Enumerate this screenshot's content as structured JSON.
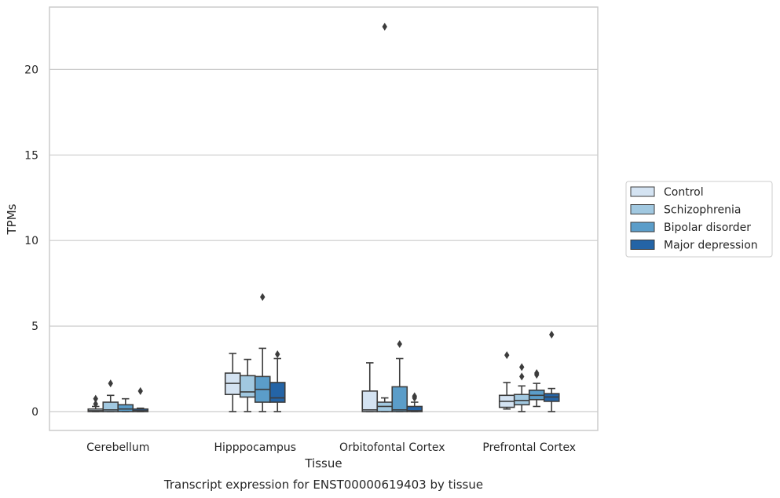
{
  "chart_data": {
    "type": "boxplot",
    "title": "Transcript expression for ENST00000619403 by tissue",
    "xlabel": "Tissue",
    "ylabel": "TPMs",
    "ylim": [
      -1.1,
      23.5
    ],
    "yticks": [
      0,
      5,
      10,
      15,
      20
    ],
    "grid": "horizontal",
    "legend_position": "right",
    "categories": [
      "Cerebellum",
      "Hipppocampus",
      "Orbitofontal Cortex",
      "Prefrontal Cortex"
    ],
    "series": [
      {
        "name": "Control",
        "color": "#d4e3f2",
        "boxes": [
          {
            "whislo": 0,
            "q1": 0.0,
            "med": 0.05,
            "q3": 0.15,
            "whishi": 0.3,
            "fliers": [
              0.45,
              0.75
            ]
          },
          {
            "whislo": 0,
            "q1": 1.0,
            "med": 1.65,
            "q3": 2.25,
            "whishi": 3.4,
            "fliers": []
          },
          {
            "whislo": 0,
            "q1": 0.0,
            "med": 0.1,
            "q3": 1.2,
            "whishi": 2.85,
            "fliers": []
          },
          {
            "whislo": 0.15,
            "q1": 0.25,
            "med": 0.6,
            "q3": 0.95,
            "whishi": 1.7,
            "fliers": [
              3.3
            ]
          }
        ]
      },
      {
        "name": "Schizophrenia",
        "color": "#a1c8e0",
        "boxes": [
          {
            "whislo": 0,
            "q1": 0.0,
            "med": 0.1,
            "q3": 0.55,
            "whishi": 0.95,
            "fliers": [
              1.65
            ]
          },
          {
            "whislo": 0,
            "q1": 0.85,
            "med": 1.15,
            "q3": 2.1,
            "whishi": 3.05,
            "fliers": []
          },
          {
            "whislo": 0,
            "q1": 0.0,
            "med": 0.3,
            "q3": 0.55,
            "whishi": 0.8,
            "fliers": [
              22.5
            ]
          },
          {
            "whislo": 0,
            "q1": 0.4,
            "med": 0.65,
            "q3": 1.0,
            "whishi": 1.5,
            "fliers": [
              2.05,
              2.6
            ]
          }
        ]
      },
      {
        "name": "Bipolar disorder",
        "color": "#5b9dc9",
        "boxes": [
          {
            "whislo": 0,
            "q1": 0.0,
            "med": 0.15,
            "q3": 0.4,
            "whishi": 0.75,
            "fliers": []
          },
          {
            "whislo": 0,
            "q1": 0.55,
            "med": 1.3,
            "q3": 2.05,
            "whishi": 3.7,
            "fliers": [
              6.7
            ]
          },
          {
            "whislo": 0,
            "q1": 0.0,
            "med": 0.1,
            "q3": 1.45,
            "whishi": 3.1,
            "fliers": [
              3.95
            ]
          },
          {
            "whislo": 0.3,
            "q1": 0.7,
            "med": 0.95,
            "q3": 1.25,
            "whishi": 1.65,
            "fliers": [
              2.15,
              2.25
            ]
          }
        ]
      },
      {
        "name": "Major depression",
        "color": "#2464a6",
        "boxes": [
          {
            "whislo": 0,
            "q1": 0.0,
            "med": 0.05,
            "q3": 0.15,
            "whishi": 0.2,
            "fliers": [
              1.2
            ]
          },
          {
            "whislo": 0,
            "q1": 0.55,
            "med": 0.8,
            "q3": 1.7,
            "whishi": 3.1,
            "fliers": [
              3.35
            ]
          },
          {
            "whislo": 0,
            "q1": 0.0,
            "med": 0.05,
            "q3": 0.3,
            "whishi": 0.55,
            "fliers": [
              0.8,
              0.9
            ]
          },
          {
            "whislo": 0,
            "q1": 0.6,
            "med": 0.85,
            "q3": 1.05,
            "whishi": 1.35,
            "fliers": [
              4.5
            ]
          }
        ]
      }
    ]
  }
}
